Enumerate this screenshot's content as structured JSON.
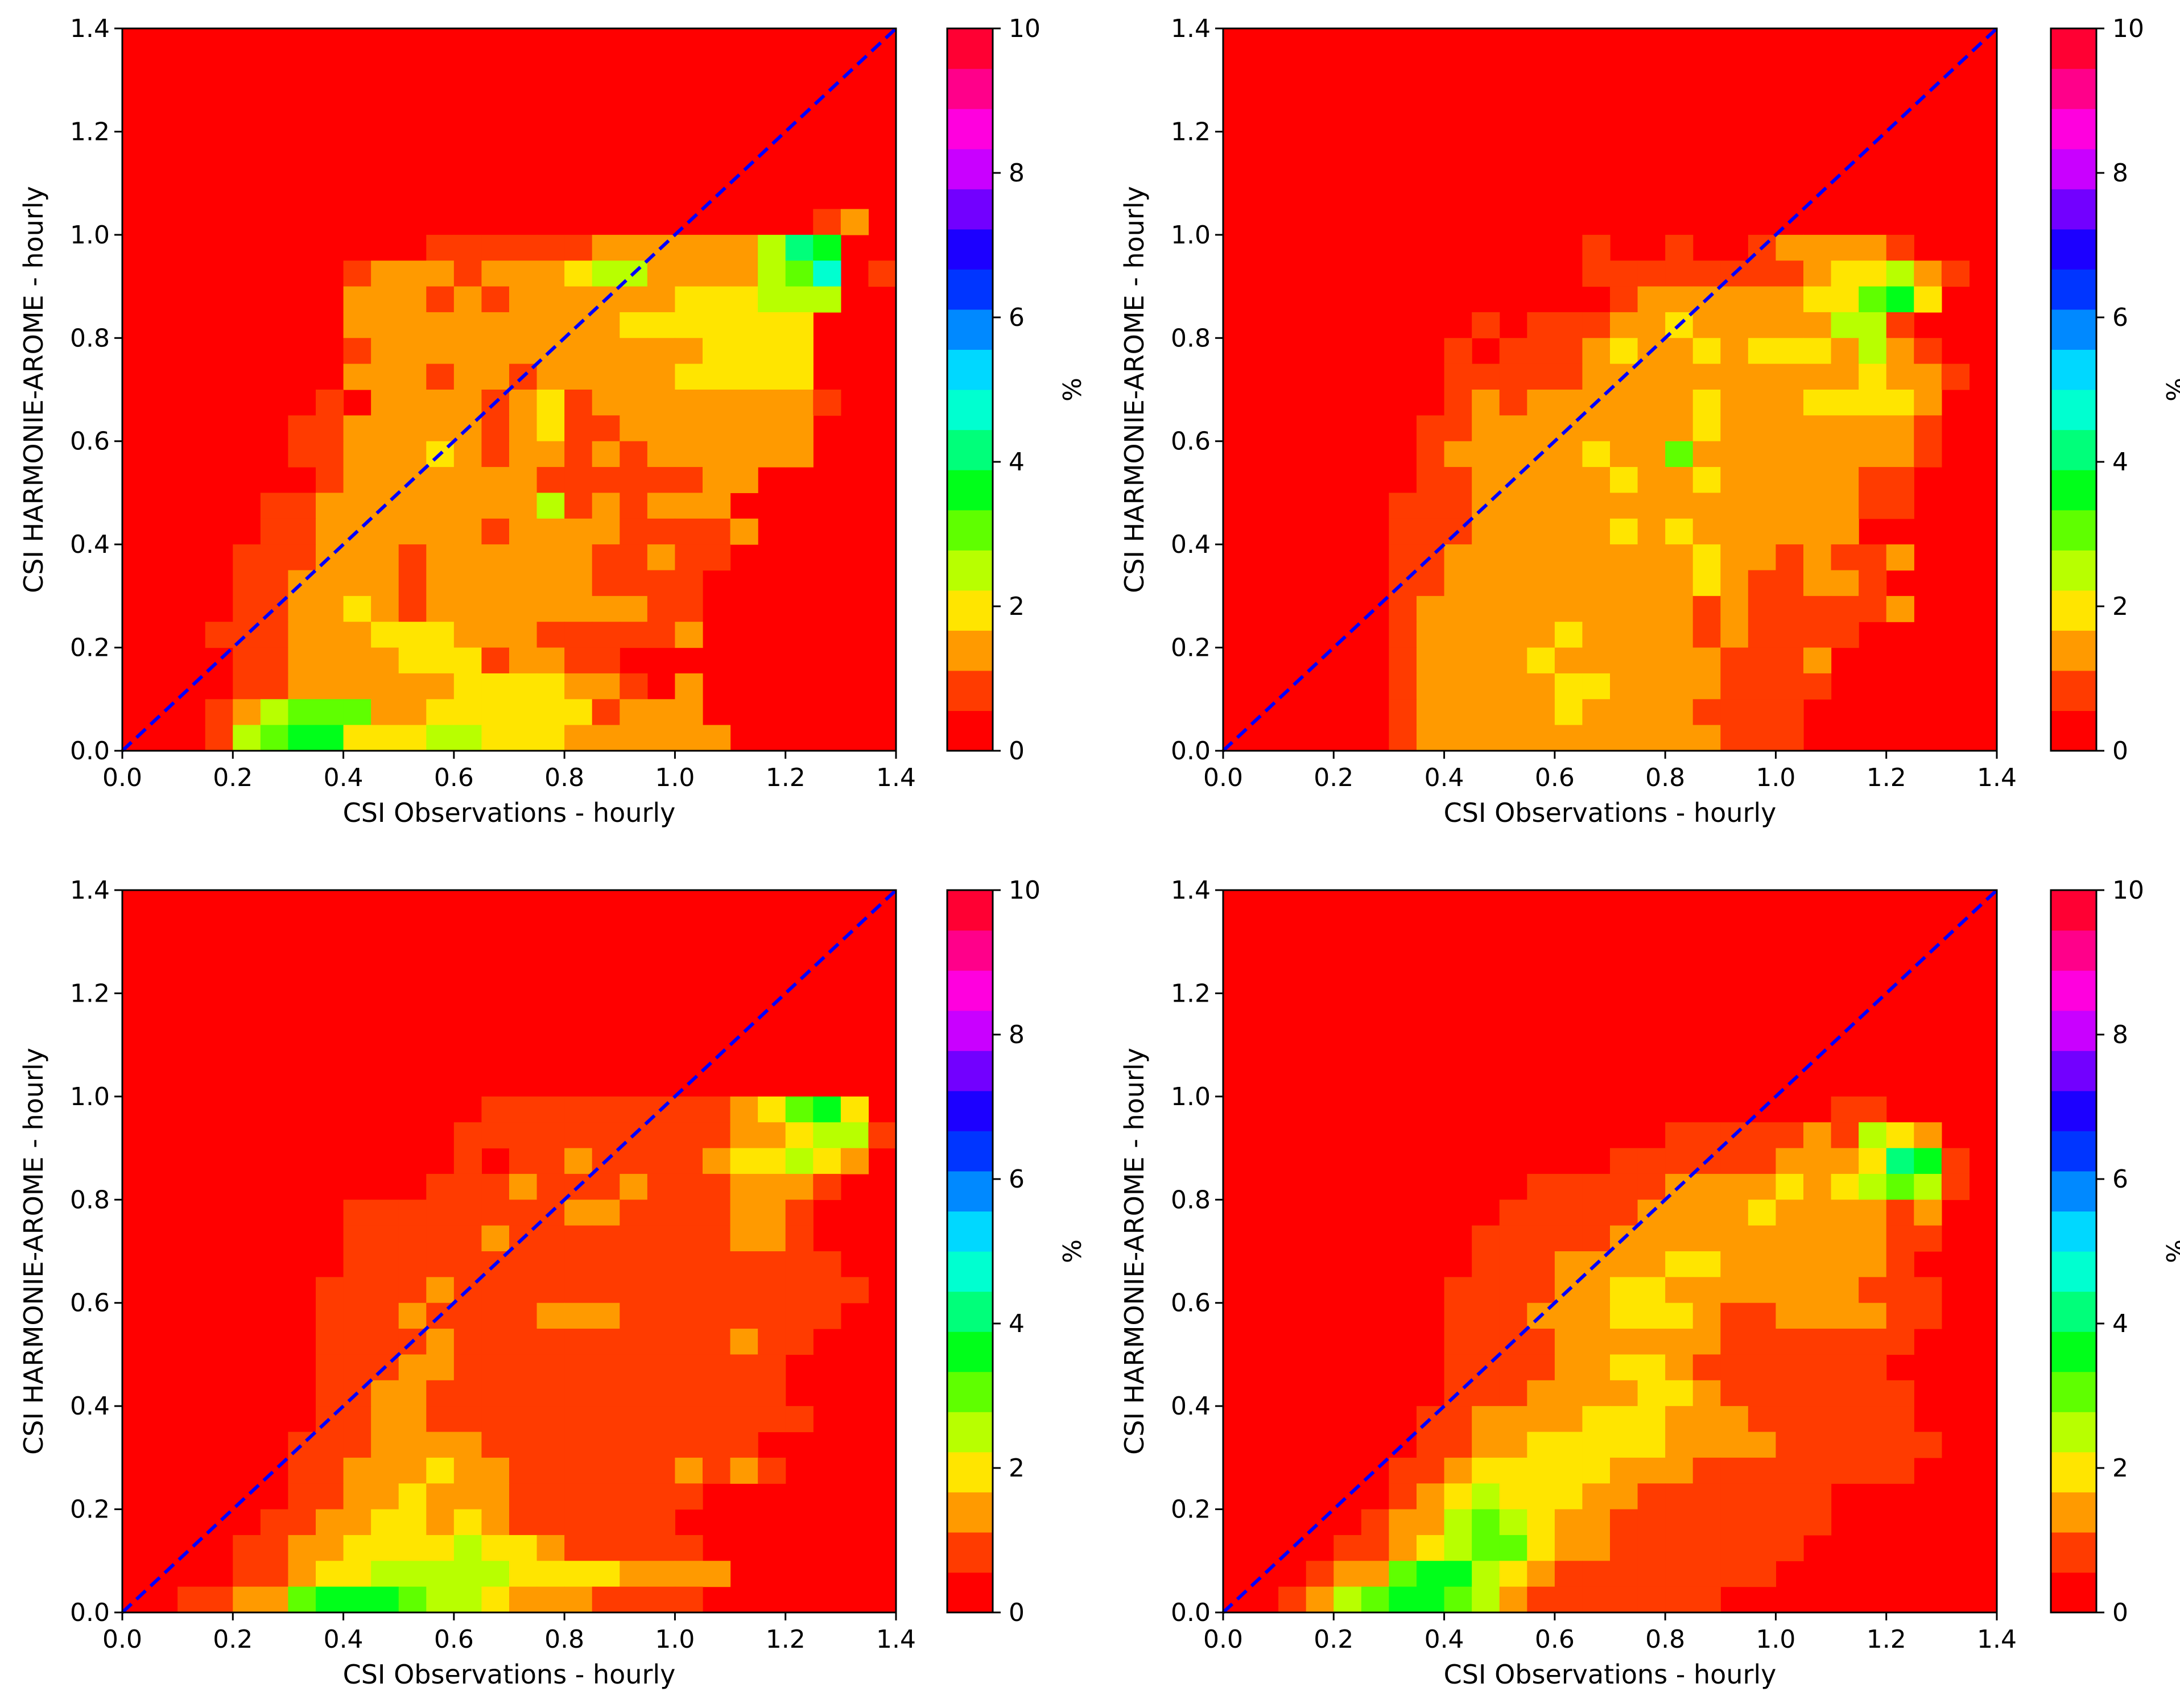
{
  "colors": {
    "background": "#ff0000",
    "diagonal": "#0000ff",
    "colormap": [
      "#ff0000",
      "#ff3b00",
      "#ff9a00",
      "#ffe500",
      "#b8ff00",
      "#5fff00",
      "#00ff1a",
      "#00ff7a",
      "#00ffd0",
      "#00d8ff",
      "#0089ff",
      "#0035ff",
      "#1c00ff",
      "#7200ff",
      "#c900ff",
      "#ff00de",
      "#ff008a",
      "#ff0033"
    ]
  },
  "chart_data": [
    {
      "type": "heatmap",
      "title": "",
      "xlabel": "CSI Observations - hourly",
      "ylabel": "CSI HARMONIE-AROME - hourly",
      "xlim": [
        0,
        1.4
      ],
      "ylim": [
        0,
        1.4
      ],
      "xticks": [
        "0.0",
        "0.2",
        "0.4",
        "0.6",
        "0.8",
        "1.0",
        "1.2",
        "1.4"
      ],
      "yticks": [
        "0.0",
        "0.2",
        "0.4",
        "0.6",
        "0.8",
        "1.0",
        "1.2",
        "1.4"
      ],
      "bin_width": 0.05,
      "colorbar": {
        "label": "%",
        "range": [
          0,
          10
        ],
        "ticks": [
          "0",
          "2",
          "4",
          "6",
          "8",
          "10"
        ]
      },
      "diagonal": "1:1 line",
      "grid_levels_note": "rows listed from y=1.4 (top) down to y=0.0; columns x=0.0..1.4; values are colormap level indices 0-17 (level ~0.55 % each)",
      "grid": [
        "0000000000000000000000000000",
        "0000000000000000000000000000",
        "0000000000000000000000000000",
        "0000000000000000000000000000",
        "0000000000000000000000000000",
        "0000000000000000000000000000",
        "0000000000000000000000000000",
        "0000000000000000000000000120",
        "0000000000011111122222247600",
        "0000000012221222344222245801",
        "0000000022212122222233344400",
        "0000000022222222223333333000",
        "0000000012222222222223333000",
        "0000000022212212222233333000",
        "0000000102222123122222222100",
        "0000001122222123112222222000",
        "0000001122232122121222222000",
        "0000000122222221111112200000",
        "0000011222222224121222000000",
        "0000011222222122221111200000",
        "0000111222122222211211000000",
        "0000112222122222211110000000",
        "0000112232122222222110000000",
        "0001112223332221111120000000",
        "0000112222333122110000000000",
        "0000112222223333221020000000",
        "0001245552233333312220000000",
        "0001456633344333222222000000"
      ]
    },
    {
      "type": "heatmap",
      "title": "",
      "xlabel": "CSI Observations - hourly",
      "ylabel": "CSI HARMONIE-AROME - hourly",
      "xlim": [
        0,
        1.4
      ],
      "ylim": [
        0,
        1.4
      ],
      "xticks": [
        "0.0",
        "0.2",
        "0.4",
        "0.6",
        "0.8",
        "1.0",
        "1.2",
        "1.4"
      ],
      "yticks": [
        "0.0",
        "0.2",
        "0.4",
        "0.6",
        "0.8",
        "1.0",
        "1.2",
        "1.4"
      ],
      "bin_width": 0.05,
      "colorbar": {
        "label": "%",
        "range": [
          0,
          10
        ],
        "ticks": [
          "0",
          "2",
          "4",
          "6",
          "8",
          "10"
        ]
      },
      "diagonal": "1:1 line",
      "grid_levels_note": "rows listed from y=1.4 (top) down to y=0.0; columns x=0.0..1.4; values are colormap level indices 0-17",
      "grid": [
        "0000000000000000000000000000",
        "0000000000000000000000000000",
        "0000000000000000000000000000",
        "0000000000000000000000000000",
        "0000000000000000000000000000",
        "0000000000000000000000000000",
        "0000000000000000000000000000",
        "0000000000000000000000000000",
        "0000000000000100100122221000",
        "0000000000000111111112334210",
        "0000000000000012222223356300",
        "0000000001011122322222441000",
        "0000000010111232232333242100",
        "0000000011111222222222232210",
        "0000000012122222232223333200",
        "0000000112222222232222222100",
        "0000000122222322522222222100",
        "0000000112222232232222211000",
        "0000001112222222222222211000",
        "0000001112222232322222200000",
        "0000001122222222232212112000",
        "0000001122222222232112210000",
        "0000001222222222212111112000",
        "0000001222223222212111100000",
        "0000001222232222221112000000",
        "0000001222223322221111000000",
        "0000001222223222211110000000",
        "0000001222222222221110000000"
      ]
    },
    {
      "type": "heatmap",
      "title": "",
      "xlabel": "CSI Observations - hourly",
      "ylabel": "CSI HARMONIE-AROME - hourly",
      "xlim": [
        0,
        1.4
      ],
      "ylim": [
        0,
        1.4
      ],
      "xticks": [
        "0.0",
        "0.2",
        "0.4",
        "0.6",
        "0.8",
        "1.0",
        "1.2",
        "1.4"
      ],
      "yticks": [
        "0.0",
        "0.2",
        "0.4",
        "0.6",
        "0.8",
        "1.0",
        "1.2",
        "1.4"
      ],
      "bin_width": 0.05,
      "colorbar": {
        "label": "%",
        "range": [
          0,
          10
        ],
        "ticks": [
          "0",
          "2",
          "4",
          "6",
          "8",
          "10"
        ]
      },
      "diagonal": "1:1 line",
      "grid_levels_note": "rows listed from y=1.4 (top) down to y=0.0; columns x=0.0..1.4; values are colormap level indices 0-17",
      "grid": [
        "0000000000000000000000000000",
        "0000000000000000000000000000",
        "0000000000000000000000000000",
        "0000000000000000000000000000",
        "0000000000000000000000000000",
        "0000000000000000000000000000",
        "0000000000000000000000000000",
        "0000000000000000000000000000",
        "0000000000000111111111235630",
        "0000000000001111111111223441",
        "0000000000001011211112334320",
        "0000000000011121112111222100",
        "0000000011111111221111221000",
        "0000000011111211111111221000",
        "0000000011111111111111111100",
        "0000000111121111111111111110",
        "0000000111211112221111111100",
        "0000000111121111111111211000",
        "0000000111221111111111110000",
        "0000000112211111111111110000",
        "0000000112211111111111111000",
        "0000001112222111111111100000",
        "0000001122232211111121210000",
        "0000001122322211111110000000",
        "0000011223323211111100000000",
        "0000112233334332111110000000",
        "0000112334444433332222000000",
        "0011225666544322211110000000"
      ]
    },
    {
      "type": "heatmap",
      "title": "",
      "xlabel": "CSI Observations - hourly",
      "ylabel": "CSI HARMONIE-AROME - hourly",
      "xlim": [
        0,
        1.4
      ],
      "ylim": [
        0,
        1.4
      ],
      "xticks": [
        "0.0",
        "0.2",
        "0.4",
        "0.6",
        "0.8",
        "1.0",
        "1.2",
        "1.4"
      ],
      "yticks": [
        "0.0",
        "0.2",
        "0.4",
        "0.6",
        "0.8",
        "1.0",
        "1.2",
        "1.4"
      ],
      "bin_width": 0.05,
      "colorbar": {
        "label": "%",
        "range": [
          0,
          10
        ],
        "ticks": [
          "0",
          "2",
          "4",
          "6",
          "8",
          "10"
        ]
      },
      "diagonal": "1:1 line",
      "grid_levels_note": "rows listed from y=1.4 (top) down to y=0.0; columns x=0.0..1.4; values are colormap level indices 0-17",
      "grid": [
        "0000000000000000000000000000",
        "0000000000000000000000000000",
        "0000000000000000000000000000",
        "0000000000000000000000000000",
        "0000000000000000000000000000",
        "0000000000000000000000000000",
        "0000000000000000000000000000",
        "0000000000000000000000000000",
        "0000000000000000000000110000",
        "0000000000000000111112143200",
        "0000000000000011111122237610",
        "0000000000011111222232345410",
        "0000000000111112222322221200",
        "0000000001111122222222221100",
        "0000000001112222332222221000",
        "0000000011112233222222211100",
        "0000000011122233321122221100",
        "0000000011112222221111111000",
        "0000000011112233211111110000",
        "0000000011122223321111111000",
        "0000000112222333222111111000",
        "0000000112233333222211111100",
        "0000001123333322211111111000",
        "0000001234333221111111000000",
        "0000012245432211111111000000",
        "0000112345532211111110000000",
        "0001225664321111111100000000",
        "0012456654211111110000000000"
      ]
    }
  ]
}
